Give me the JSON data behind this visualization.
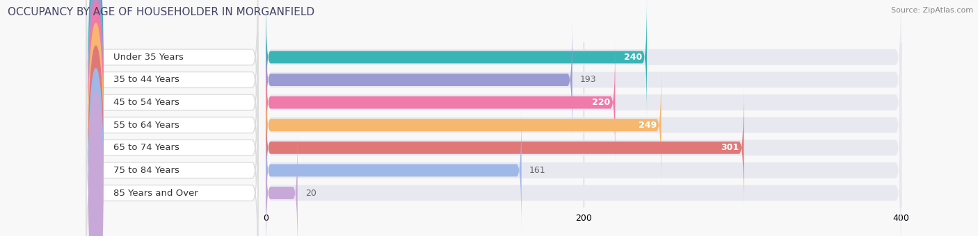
{
  "title": "OCCUPANCY BY AGE OF HOUSEHOLDER IN MORGANFIELD",
  "source": "Source: ZipAtlas.com",
  "categories": [
    "Under 35 Years",
    "35 to 44 Years",
    "45 to 54 Years",
    "55 to 64 Years",
    "65 to 74 Years",
    "75 to 84 Years",
    "85 Years and Over"
  ],
  "values": [
    240,
    193,
    220,
    249,
    301,
    161,
    20
  ],
  "bar_colors": [
    "#3ab5b5",
    "#9b9bd4",
    "#f07aaa",
    "#f5b86e",
    "#e07878",
    "#a0b8e8",
    "#c8a8d8"
  ],
  "label_pill_color": "#ffffff",
  "bar_bg_color": "#e8e8f0",
  "value_inside_color": "#ffffff",
  "value_outside_color": "#666666",
  "xlim_data": [
    0,
    400
  ],
  "xticks": [
    0,
    200,
    400
  ],
  "title_fontsize": 11,
  "label_fontsize": 9.5,
  "value_fontsize": 9,
  "tick_fontsize": 9,
  "background_color": "#f8f8f8",
  "inside_threshold": 200
}
